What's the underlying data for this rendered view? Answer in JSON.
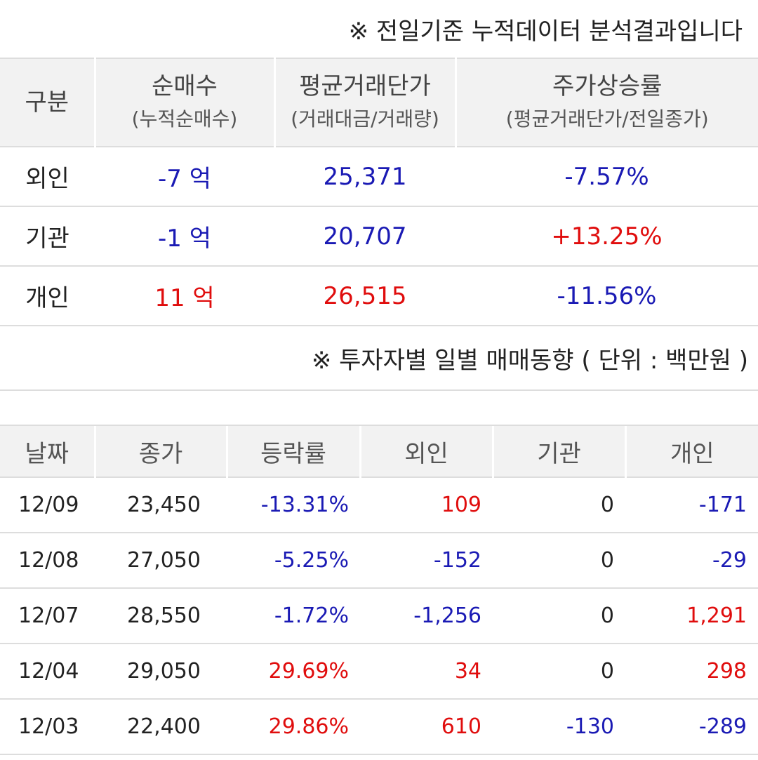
{
  "summary_note": "※ 전일기준 누적데이터 분석결과입니다",
  "summary": {
    "headers": [
      {
        "main": "구분",
        "sub": ""
      },
      {
        "main": "순매수",
        "sub": "(누적순매수)"
      },
      {
        "main": "평균거래단가",
        "sub": "(거래대금/거래량)"
      },
      {
        "main": "주가상승률",
        "sub": "(평균거래단가/전일종가)"
      }
    ],
    "rows": [
      {
        "label": "외인",
        "net_buy": "-7 억",
        "avg_price": "25,371",
        "rate": "-7.57%"
      },
      {
        "label": "기관",
        "net_buy": "-1 억",
        "avg_price": "20,707",
        "rate": "+13.25%"
      },
      {
        "label": "개인",
        "net_buy": "11 억",
        "avg_price": "26,515",
        "rate": "-11.56%"
      }
    ]
  },
  "daily_note": "※ 투자자별 일별 매매동향 ( 단위 : 백만원 )",
  "daily": {
    "headers": [
      "날짜",
      "종가",
      "등락률",
      "외인",
      "기관",
      "개인"
    ],
    "rows": [
      {
        "date": "12/09",
        "close": "23,450",
        "change": "-13.31%",
        "foreign": "109",
        "institution": "0",
        "individual": "-171"
      },
      {
        "date": "12/08",
        "close": "27,050",
        "change": "-5.25%",
        "foreign": "-152",
        "institution": "0",
        "individual": "-29"
      },
      {
        "date": "12/07",
        "close": "28,550",
        "change": "-1.72%",
        "foreign": "-1,256",
        "institution": "0",
        "individual": "1,291"
      },
      {
        "date": "12/04",
        "close": "29,050",
        "change": "29.69%",
        "foreign": "34",
        "institution": "0",
        "individual": "298"
      },
      {
        "date": "12/03",
        "close": "22,400",
        "change": "29.86%",
        "foreign": "610",
        "institution": "-130",
        "individual": "-289"
      }
    ]
  },
  "colors": {
    "negative": "#1a1ab4",
    "positive": "#e00d0d",
    "neutral": "#222222"
  }
}
